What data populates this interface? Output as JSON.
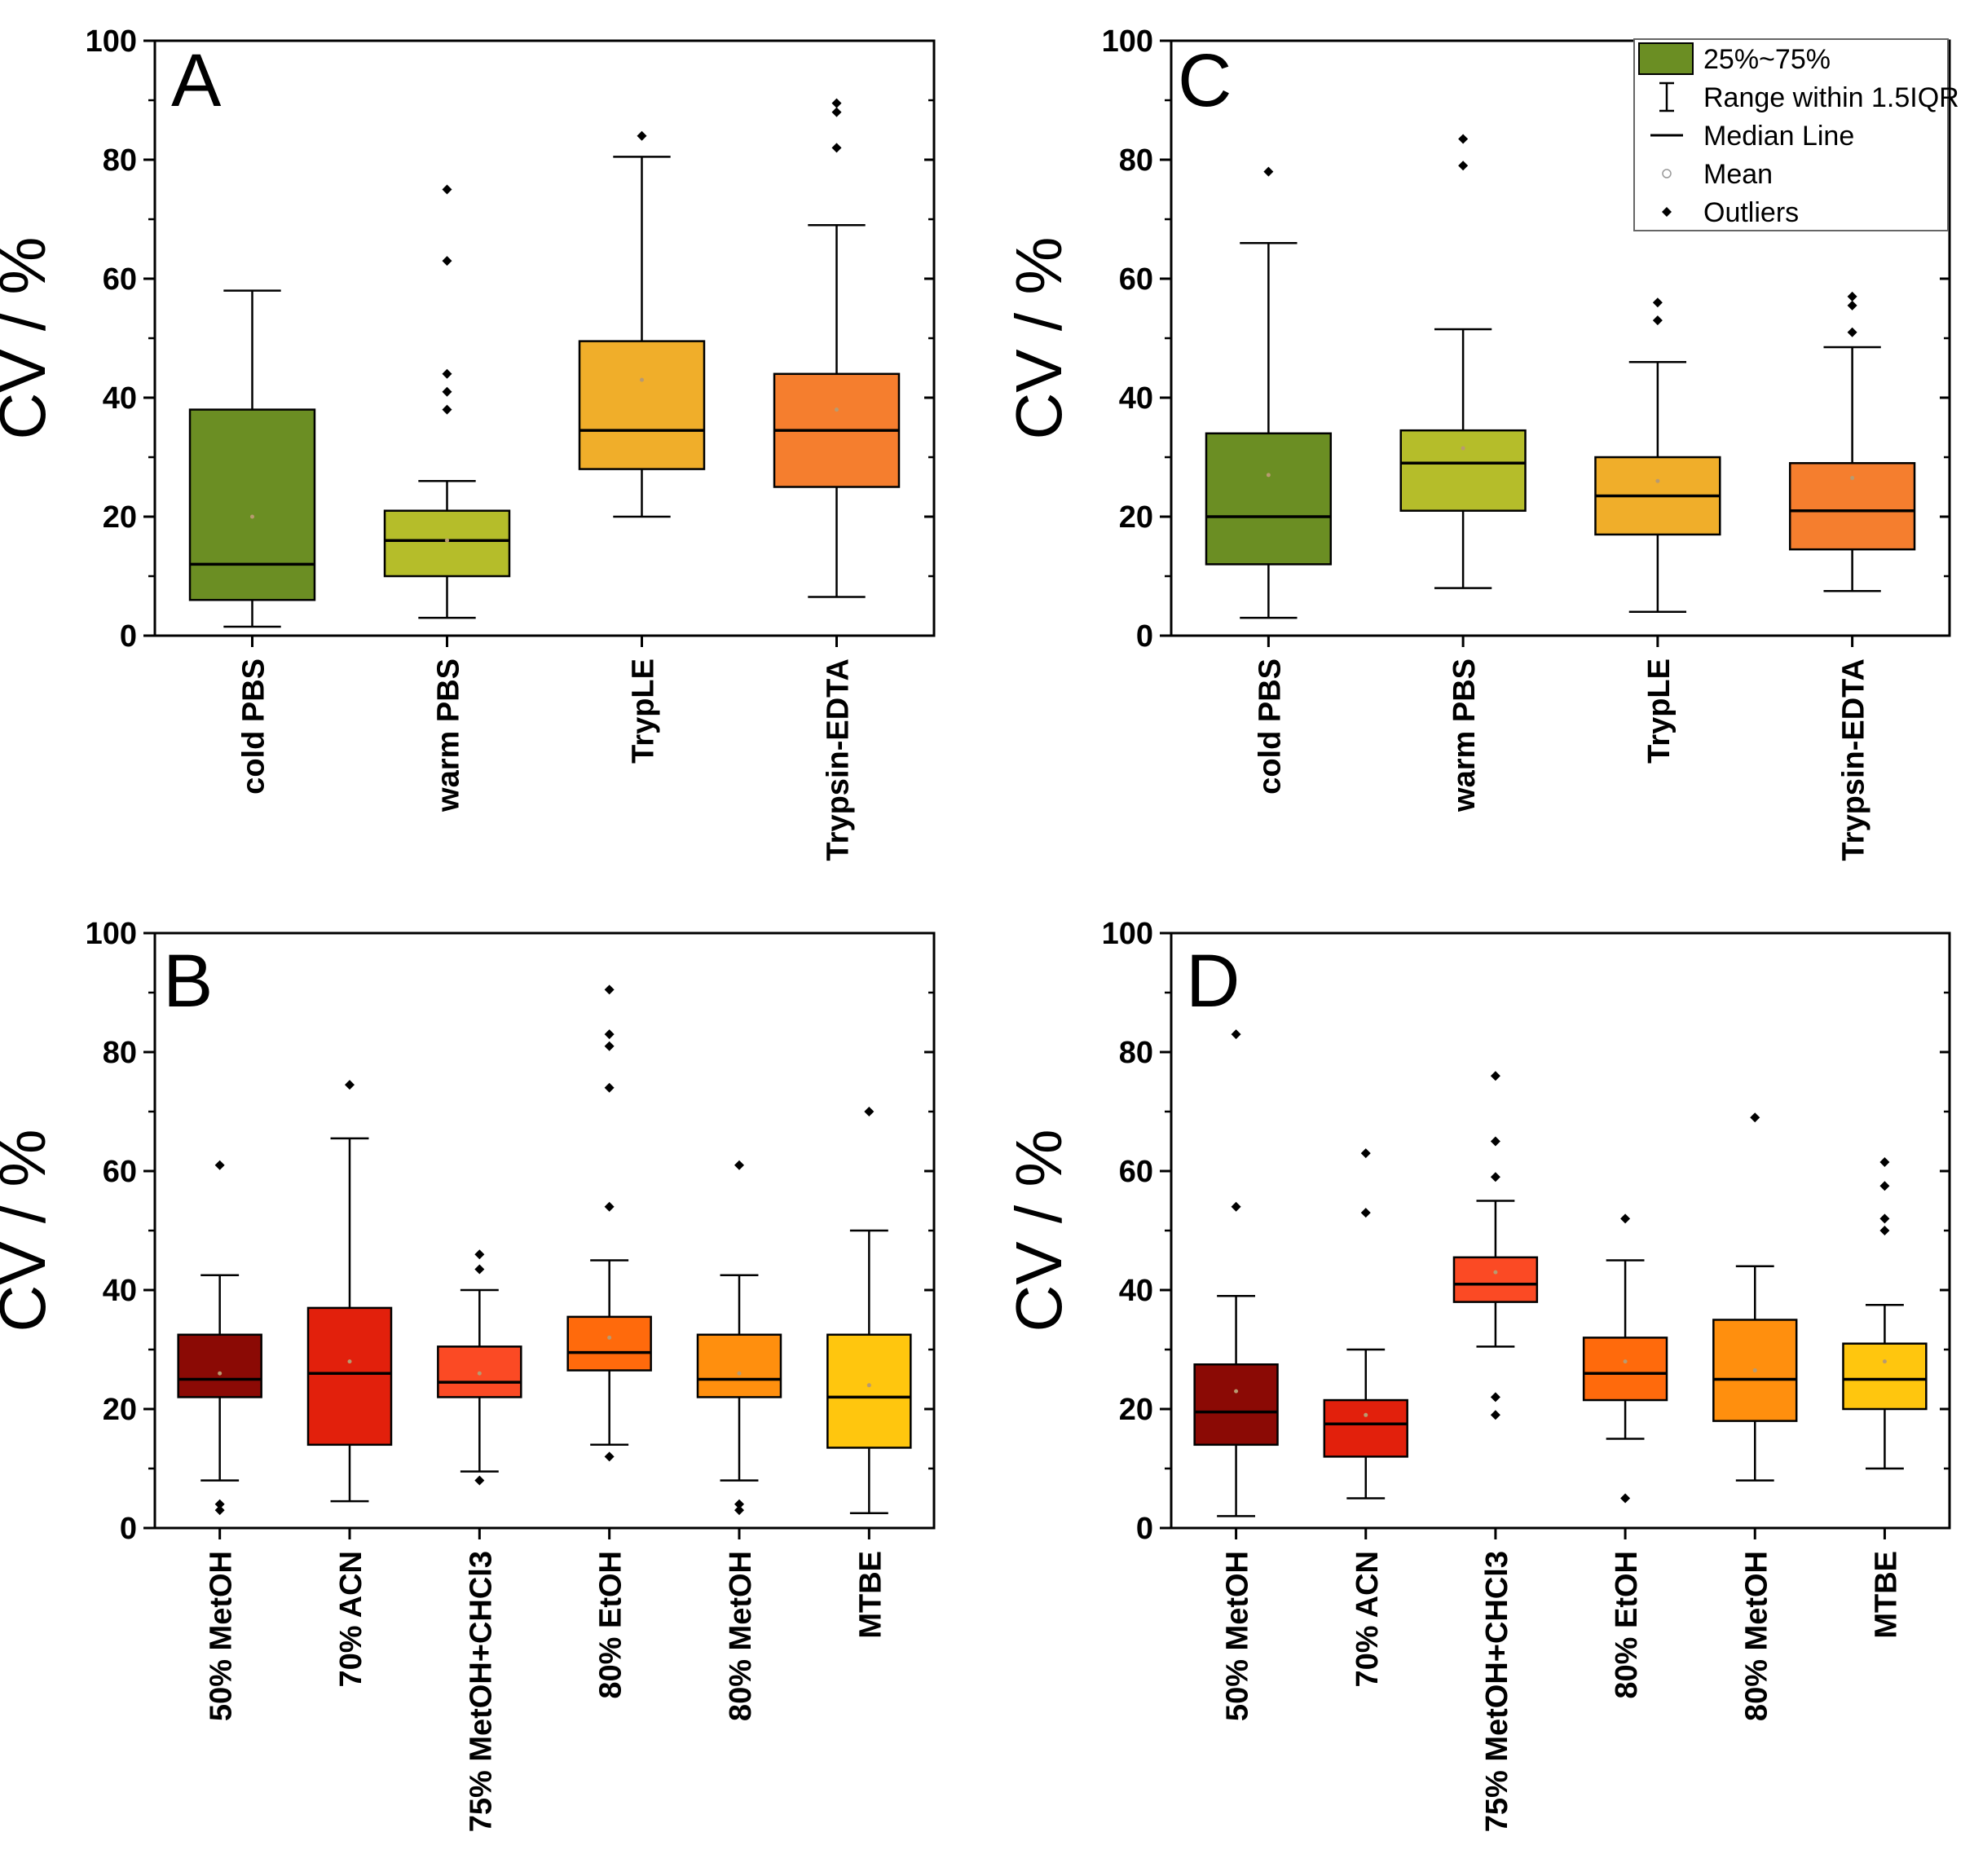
{
  "figure": {
    "legend": {
      "items": [
        {
          "label": "25%~75%",
          "icon": "box-swatch-icon"
        },
        {
          "label": "Range within 1.5IQR",
          "icon": "whisker-icon"
        },
        {
          "label": "Median Line",
          "icon": "median-line-icon"
        },
        {
          "label": "Mean",
          "icon": "mean-circle-icon"
        },
        {
          "label": "Outliers",
          "icon": "outlier-diamond-icon"
        }
      ]
    }
  },
  "chart_data": [
    {
      "panel": "A",
      "type": "box",
      "ylabel": "CV / %",
      "ylim": [
        0,
        100
      ],
      "yticks": [
        0,
        20,
        40,
        60,
        80,
        100
      ],
      "categories": [
        "cold PBS",
        "warm PBS",
        "TrypLE",
        "Trypsin-EDTA"
      ],
      "boxes": [
        {
          "q1": 6,
          "median": 12,
          "q3": 38,
          "whisker_low": 1.5,
          "whisker_high": 58,
          "mean": 20,
          "outliers": [],
          "color": "#6b8e23"
        },
        {
          "q1": 10,
          "median": 16,
          "q3": 21,
          "whisker_low": 3,
          "whisker_high": 26,
          "mean": 16,
          "outliers": [
            38,
            41,
            44,
            63,
            75
          ],
          "color": "#b5bd2a"
        },
        {
          "q1": 28,
          "median": 34.5,
          "q3": 49.5,
          "whisker_low": 20,
          "whisker_high": 80.5,
          "mean": 43,
          "outliers": [
            84
          ],
          "color": "#f0ae2a"
        },
        {
          "q1": 25,
          "median": 34.5,
          "q3": 44,
          "whisker_low": 6.5,
          "whisker_high": 69,
          "mean": 38,
          "outliers": [
            82,
            88,
            89.5
          ],
          "color": "#f57e2e"
        }
      ]
    },
    {
      "panel": "C",
      "type": "box",
      "ylabel": "CV / %",
      "ylim": [
        0,
        100
      ],
      "yticks": [
        0,
        20,
        40,
        60,
        80,
        100
      ],
      "categories": [
        "cold PBS",
        "warm PBS",
        "TrypLE",
        "Trypsin-EDTA"
      ],
      "boxes": [
        {
          "q1": 12,
          "median": 20,
          "q3": 34,
          "whisker_low": 3,
          "whisker_high": 66,
          "mean": 27,
          "outliers": [
            78
          ],
          "color": "#6b8e23"
        },
        {
          "q1": 21,
          "median": 29,
          "q3": 34.5,
          "whisker_low": 8,
          "whisker_high": 51.5,
          "mean": 31.5,
          "outliers": [
            79,
            83.5
          ],
          "color": "#b5bd2a"
        },
        {
          "q1": 17,
          "median": 23.5,
          "q3": 30,
          "whisker_low": 4,
          "whisker_high": 46,
          "mean": 26,
          "outliers": [
            53,
            56
          ],
          "color": "#f0ae2a"
        },
        {
          "q1": 14.5,
          "median": 21,
          "q3": 29,
          "whisker_low": 7.5,
          "whisker_high": 48.5,
          "mean": 26.5,
          "outliers": [
            51,
            55.5,
            57
          ],
          "color": "#f57e2e"
        }
      ]
    },
    {
      "panel": "B",
      "type": "box",
      "ylabel": "CV / %",
      "ylim": [
        0,
        100
      ],
      "yticks": [
        0,
        20,
        40,
        60,
        80,
        100
      ],
      "categories": [
        "50% MetOH",
        "70% ACN",
        "75% MetOH+CHCl3",
        "80% EtOH",
        "80% MetOH",
        "MTBE"
      ],
      "boxes": [
        {
          "q1": 22,
          "median": 25,
          "q3": 32.5,
          "whisker_low": 8,
          "whisker_high": 42.5,
          "mean": 26,
          "outliers": [
            3,
            4,
            61
          ],
          "color": "#8b0a05"
        },
        {
          "q1": 14,
          "median": 26,
          "q3": 37,
          "whisker_low": 4.5,
          "whisker_high": 65.5,
          "mean": 28,
          "outliers": [
            74.5
          ],
          "color": "#e2200c"
        },
        {
          "q1": 22,
          "median": 24.5,
          "q3": 30.5,
          "whisker_low": 9.5,
          "whisker_high": 40,
          "mean": 26,
          "outliers": [
            8,
            43.5,
            46
          ],
          "color": "#fb4a24"
        },
        {
          "q1": 26.5,
          "median": 29.5,
          "q3": 35.5,
          "whisker_low": 14,
          "whisker_high": 45,
          "mean": 32,
          "outliers": [
            12,
            54,
            74,
            81,
            83,
            90.5
          ],
          "color": "#ff6a0c"
        },
        {
          "q1": 22,
          "median": 25,
          "q3": 32.5,
          "whisker_low": 8,
          "whisker_high": 42.5,
          "mean": 26,
          "outliers": [
            3,
            4,
            61
          ],
          "color": "#ff8f0e"
        },
        {
          "q1": 13.5,
          "median": 22,
          "q3": 32.5,
          "whisker_low": 2.5,
          "whisker_high": 50,
          "mean": 24,
          "outliers": [
            70
          ],
          "color": "#ffc60e"
        }
      ]
    },
    {
      "panel": "D",
      "type": "box",
      "ylabel": "CV / %",
      "ylim": [
        0,
        100
      ],
      "yticks": [
        0,
        20,
        40,
        60,
        80,
        100
      ],
      "categories": [
        "50% MetOH",
        "70% ACN",
        "75% MetOH+CHCl3",
        "80% EtOH",
        "80% MetOH",
        "MTBE"
      ],
      "boxes": [
        {
          "q1": 14,
          "median": 19.5,
          "q3": 27.5,
          "whisker_low": 2,
          "whisker_high": 39,
          "mean": 23,
          "outliers": [
            54,
            83
          ],
          "color": "#8b0a05"
        },
        {
          "q1": 12,
          "median": 17.5,
          "q3": 21.5,
          "whisker_low": 5,
          "whisker_high": 30,
          "mean": 19,
          "outliers": [
            53,
            63
          ],
          "color": "#e2200c"
        },
        {
          "q1": 38,
          "median": 41,
          "q3": 45.5,
          "whisker_low": 30.5,
          "whisker_high": 55,
          "mean": 43,
          "outliers": [
            19,
            22,
            59,
            65,
            76
          ],
          "color": "#fb4a24"
        },
        {
          "q1": 21.5,
          "median": 26,
          "q3": 32,
          "whisker_low": 15,
          "whisker_high": 45,
          "mean": 28,
          "outliers": [
            5,
            52
          ],
          "color": "#ff6a0c"
        },
        {
          "q1": 18,
          "median": 25,
          "q3": 35,
          "whisker_low": 8,
          "whisker_high": 44,
          "mean": 26.5,
          "outliers": [
            69
          ],
          "color": "#ff8f0e"
        },
        {
          "q1": 20,
          "median": 25,
          "q3": 31,
          "whisker_low": 10,
          "whisker_high": 37.5,
          "mean": 28,
          "outliers": [
            50,
            52,
            57.5,
            61.5
          ],
          "color": "#ffc60e"
        }
      ]
    }
  ]
}
